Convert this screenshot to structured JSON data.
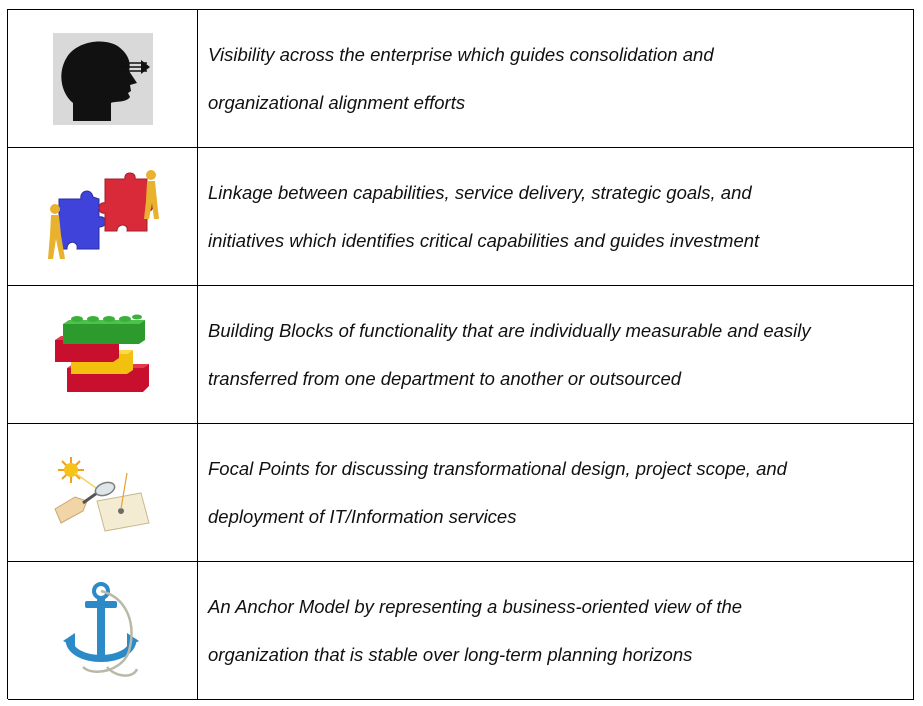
{
  "rows": [
    {
      "icon": "head-vision-icon",
      "lines": [
        "Visibility across the enterprise which guides consolidation and",
        "organizational alignment efforts"
      ]
    },
    {
      "icon": "puzzle-people-icon",
      "lines": [
        "Linkage between capabilities, service delivery, strategic goals, and",
        "initiatives which identifies critical capabilities and guides investment"
      ]
    },
    {
      "icon": "building-blocks-icon",
      "lines": [
        "Building Blocks of functionality that are individually measurable and easily",
        "transferred from one department to another or outsourced"
      ]
    },
    {
      "icon": "magnifier-sun-focus-icon",
      "lines": [
        "Focal Points for discussing transformational design, project scope, and",
        "deployment of IT/Information services"
      ]
    },
    {
      "icon": "anchor-icon",
      "lines": [
        "An Anchor Model by representing a business-oriented view of the",
        "organization that is stable over long-term planning horizons"
      ]
    }
  ]
}
